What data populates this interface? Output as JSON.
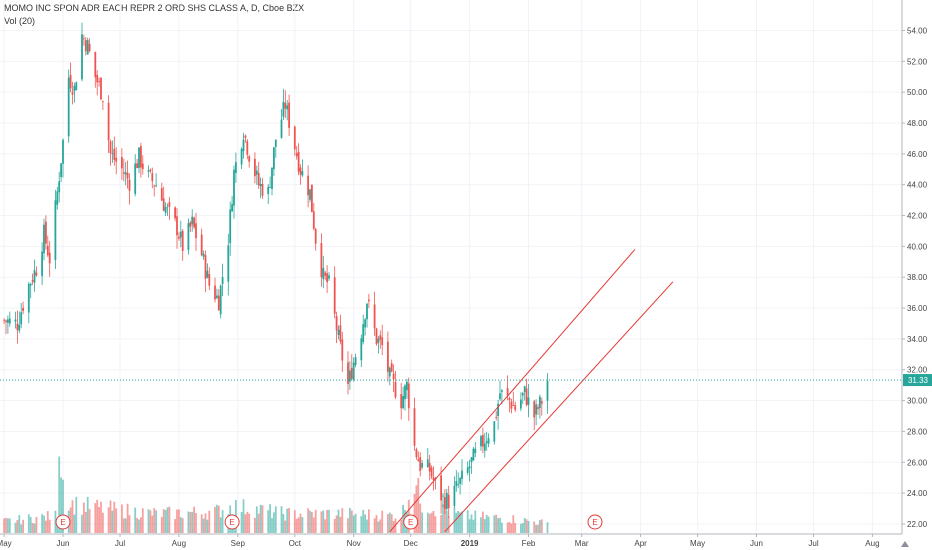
{
  "header": {
    "title": "MOMO INC SPON ADR EACH REPR 2 ORD SHS CLASS A, D, Cboe BZX",
    "volume_label": "Vol (20)"
  },
  "chart_data": {
    "type": "candlestick",
    "symbol": "MOMO",
    "interval": "D",
    "exchange": "Cboe BZX",
    "y_ticks": [
      "22.00",
      "24.00",
      "26.00",
      "28.00",
      "30.00",
      "32.00",
      "34.00",
      "36.00",
      "38.00",
      "40.00",
      "42.00",
      "44.00",
      "46.00",
      "48.00",
      "50.00",
      "52.00",
      "54.00"
    ],
    "ylim": [
      21,
      55
    ],
    "x_ticks": [
      {
        "label": "May",
        "date": "2018-05-01",
        "bold": false
      },
      {
        "label": "Jun",
        "date": "2018-06-01",
        "bold": false
      },
      {
        "label": "Jul",
        "date": "2018-07-01",
        "bold": false
      },
      {
        "label": "Aug",
        "date": "2018-08-01",
        "bold": false
      },
      {
        "label": "Sep",
        "date": "2018-09-01",
        "bold": false
      },
      {
        "label": "Oct",
        "date": "2018-10-01",
        "bold": false
      },
      {
        "label": "Nov",
        "date": "2018-11-01",
        "bold": false
      },
      {
        "label": "Dec",
        "date": "2018-12-01",
        "bold": false
      },
      {
        "label": "2019",
        "date": "2019-01-01",
        "bold": true
      },
      {
        "label": "Feb",
        "date": "2019-02-01",
        "bold": false
      },
      {
        "label": "Mar",
        "date": "2019-03-01",
        "bold": false
      },
      {
        "label": "Apr",
        "date": "2019-04-01",
        "bold": false
      },
      {
        "label": "May",
        "date": "2019-05-01",
        "bold": false
      },
      {
        "label": "Jun",
        "date": "2019-06-01",
        "bold": false
      },
      {
        "label": "Jul",
        "date": "2019-07-01",
        "bold": false
      },
      {
        "label": "Aug",
        "date": "2019-08-01",
        "bold": false
      }
    ],
    "last_price": "31.33",
    "up_color": "#26a69a",
    "down_color": "#ef5350",
    "channel_color": "#e53935",
    "earnings_marker": "E",
    "earnings_dates": [
      "2018-06-01",
      "2018-08-29",
      "2018-12-01",
      "2019-03-08"
    ],
    "trend_channel": [
      {
        "from": {
          "date": "2018-11-20",
          "price": 21.5
        },
        "to": {
          "date": "2019-03-29",
          "price": 39.8
        }
      },
      {
        "from": {
          "date": "2018-12-19",
          "price": 21.5
        },
        "to": {
          "date": "2019-04-18",
          "price": 37.7
        }
      }
    ],
    "price_keypoints": [
      [
        "2018-05-01",
        35.2
      ],
      [
        "2018-05-08",
        35.0
      ],
      [
        "2018-05-14",
        37.5
      ],
      [
        "2018-05-18",
        38.6
      ],
      [
        "2018-05-22",
        40.8
      ],
      [
        "2018-05-25",
        39.2
      ],
      [
        "2018-05-29",
        43.5
      ],
      [
        "2018-06-01",
        46.8
      ],
      [
        "2018-06-04",
        51.0
      ],
      [
        "2018-06-07",
        50.2
      ],
      [
        "2018-06-11",
        53.7
      ],
      [
        "2018-06-14",
        53.0
      ],
      [
        "2018-06-18",
        51.0
      ],
      [
        "2018-06-22",
        49.8
      ],
      [
        "2018-06-26",
        46.0
      ],
      [
        "2018-07-02",
        45.0
      ],
      [
        "2018-07-06",
        44.2
      ],
      [
        "2018-07-11",
        45.8
      ],
      [
        "2018-07-16",
        44.5
      ],
      [
        "2018-07-20",
        44.0
      ],
      [
        "2018-07-25",
        42.5
      ],
      [
        "2018-07-31",
        41.2
      ],
      [
        "2018-08-03",
        40.0
      ],
      [
        "2018-08-08",
        41.5
      ],
      [
        "2018-08-13",
        39.5
      ],
      [
        "2018-08-17",
        37.5
      ],
      [
        "2018-08-22",
        36.5
      ],
      [
        "2018-08-27",
        40.5
      ],
      [
        "2018-08-30",
        44.8
      ],
      [
        "2018-09-04",
        47.5
      ],
      [
        "2018-09-07",
        46.0
      ],
      [
        "2018-09-12",
        44.0
      ],
      [
        "2018-09-17",
        43.5
      ],
      [
        "2018-09-21",
        47.0
      ],
      [
        "2018-09-26",
        49.2
      ],
      [
        "2018-10-01",
        46.5
      ],
      [
        "2018-10-04",
        45.0
      ],
      [
        "2018-10-09",
        43.5
      ],
      [
        "2018-10-12",
        40.5
      ],
      [
        "2018-10-16",
        38.0
      ],
      [
        "2018-10-19",
        37.5
      ],
      [
        "2018-10-24",
        34.0
      ],
      [
        "2018-10-29",
        31.0
      ],
      [
        "2018-11-01",
        32.5
      ],
      [
        "2018-11-05",
        34.5
      ],
      [
        "2018-11-08",
        36.5
      ],
      [
        "2018-11-13",
        34.0
      ],
      [
        "2018-11-16",
        33.5
      ],
      [
        "2018-11-20",
        31.5
      ],
      [
        "2018-11-26",
        30.0
      ],
      [
        "2018-11-29",
        31.0
      ],
      [
        "2018-12-03",
        27.0
      ],
      [
        "2018-12-06",
        25.8
      ],
      [
        "2018-12-11",
        25.5
      ],
      [
        "2018-12-14",
        24.5
      ],
      [
        "2018-12-18",
        23.6
      ],
      [
        "2018-12-21",
        23.5
      ],
      [
        "2018-12-26",
        24.5
      ],
      [
        "2018-12-31",
        25.5
      ],
      [
        "2019-01-04",
        26.5
      ],
      [
        "2019-01-09",
        27.5
      ],
      [
        "2019-01-14",
        28.5
      ],
      [
        "2019-01-17",
        30.5
      ],
      [
        "2019-01-22",
        30.0
      ],
      [
        "2019-01-25",
        29.5
      ],
      [
        "2019-01-30",
        30.5
      ],
      [
        "2019-02-04",
        29.0
      ],
      [
        "2019-02-08",
        30.0
      ],
      [
        "2019-02-11",
        31.3
      ]
    ],
    "volume_keypoints": [
      [
        "2018-05-01",
        0.12
      ],
      [
        "2018-05-29",
        0.18
      ],
      [
        "2018-05-30",
        1.0
      ],
      [
        "2018-06-01",
        0.55
      ],
      [
        "2018-06-05",
        0.3
      ],
      [
        "2018-06-25",
        0.25
      ],
      [
        "2018-07-20",
        0.2
      ],
      [
        "2018-08-20",
        0.22
      ],
      [
        "2018-08-30",
        0.28
      ],
      [
        "2018-09-26",
        0.2
      ],
      [
        "2018-10-25",
        0.2
      ],
      [
        "2018-11-26",
        0.18
      ],
      [
        "2018-12-03",
        0.55
      ],
      [
        "2018-12-07",
        0.3
      ],
      [
        "2018-12-28",
        0.18
      ],
      [
        "2019-01-22",
        0.15
      ],
      [
        "2019-02-11",
        0.1
      ]
    ]
  }
}
